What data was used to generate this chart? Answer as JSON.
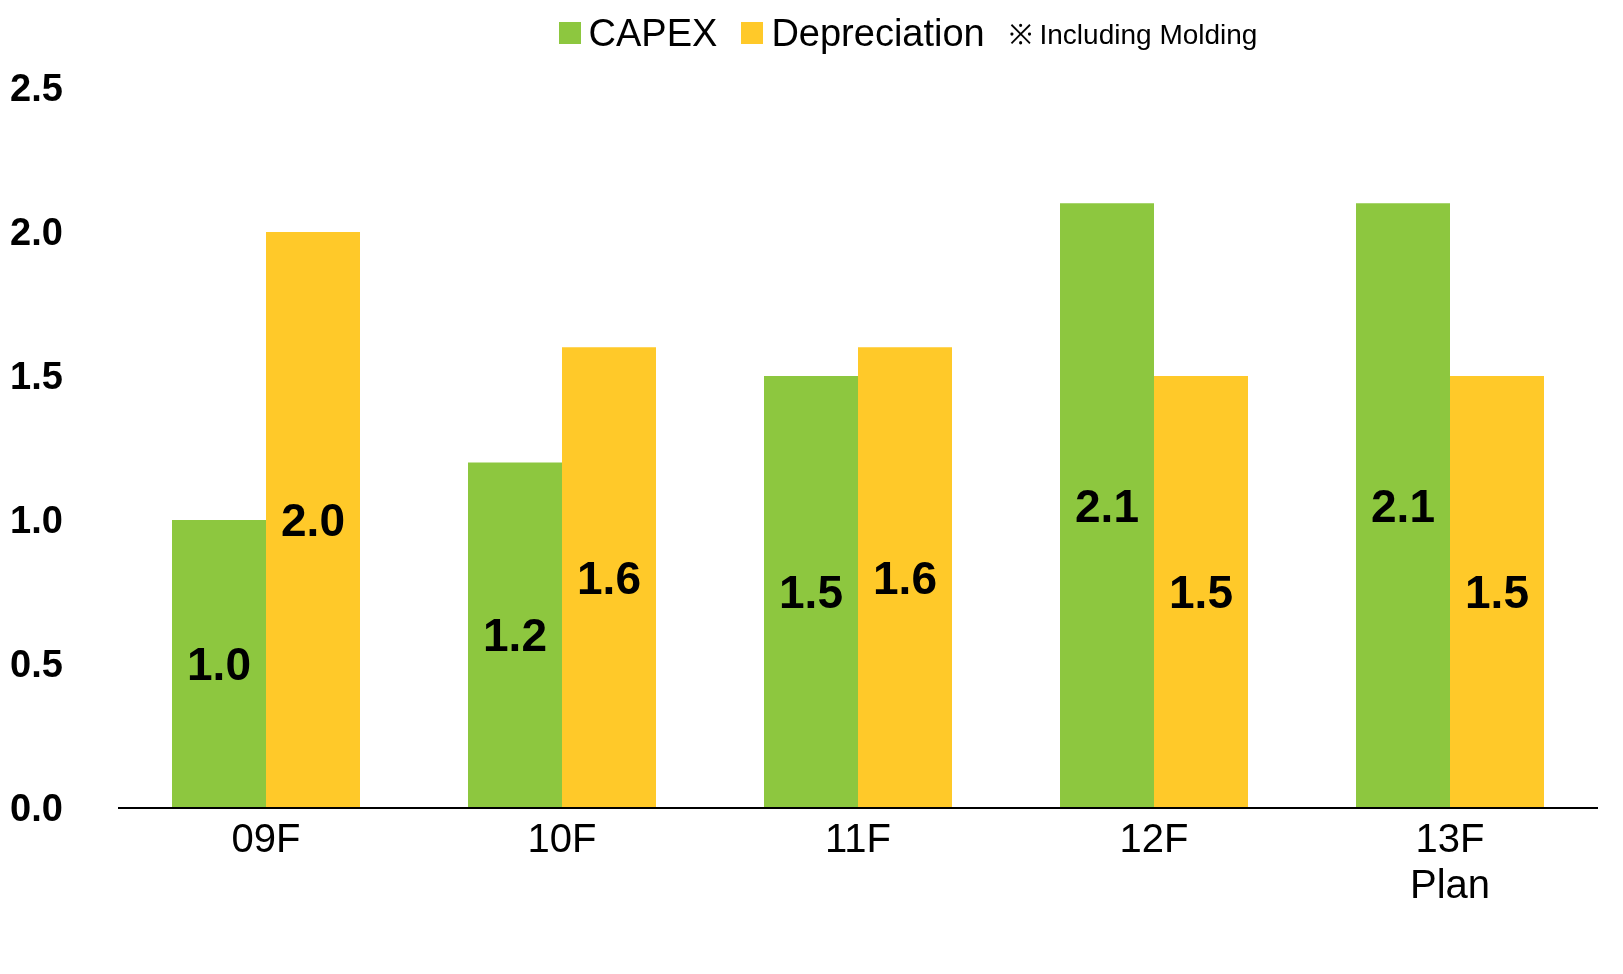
{
  "chart_data": {
    "type": "bar",
    "categories": [
      "09F",
      "10F",
      "11F",
      "12F",
      "13F\nPlan"
    ],
    "series": [
      {
        "name": "CAPEX",
        "color": "#8dc73f",
        "values": [
          1.0,
          1.2,
          1.5,
          2.1,
          2.1
        ],
        "value_labels": [
          "1.0",
          "1.2",
          "1.5",
          "2.1",
          "2.1"
        ]
      },
      {
        "name": "Depreciation",
        "color": "#ffc929",
        "values": [
          2.0,
          1.6,
          1.6,
          1.5,
          1.5
        ],
        "value_labels": [
          "2.0",
          "1.6",
          "1.6",
          "1.5",
          "1.5"
        ]
      }
    ],
    "ylim": [
      0,
      2.5
    ],
    "yticks": [
      {
        "value": 0,
        "label": "0.0"
      },
      {
        "value": 0.5,
        "label": "0.5"
      },
      {
        "value": 1,
        "label": "1.0"
      },
      {
        "value": 1.5,
        "label": "1.5"
      },
      {
        "value": 2,
        "label": "2.0"
      },
      {
        "value": 2.5,
        "label": "2.5"
      }
    ],
    "grid": false,
    "legend": "top",
    "annotations": [
      "※ Including  Molding"
    ]
  }
}
